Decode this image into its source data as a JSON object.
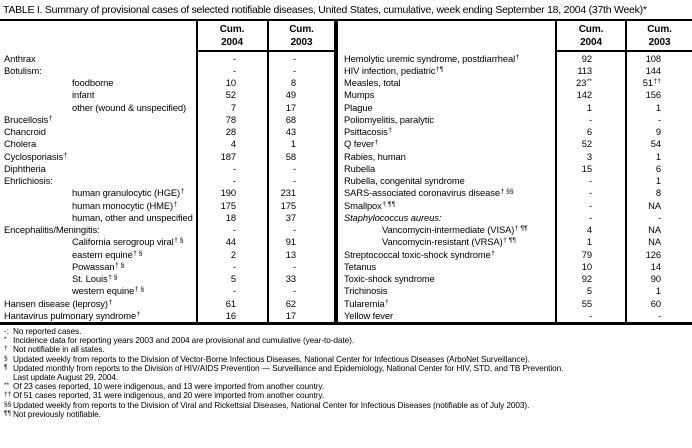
{
  "title": "TABLE I. Summary of provisional cases of selected notifiable diseases, United States, cumulative, week ending September 18, 2004 (37th Week)*",
  "table": {
    "header": {
      "cum": "Cum.",
      "y2004": "2004",
      "y2003": "2003"
    },
    "left_rows": [
      {
        "label": "Anthrax",
        "v1": "-",
        "v2": "-"
      },
      {
        "label": "Botulism:",
        "v1": "-",
        "v2": "-"
      },
      {
        "label": "foodborne",
        "indent": true,
        "v1": "10",
        "v2": "8"
      },
      {
        "label": "infant",
        "indent": true,
        "v1": "52",
        "v2": "49"
      },
      {
        "label": "other (wound & unspecified)",
        "indent": true,
        "v1": "7",
        "v2": "17"
      },
      {
        "label": "Brucellosis",
        "sup": "†",
        "v1": "78",
        "v2": "68"
      },
      {
        "label": "Chancroid",
        "v1": "28",
        "v2": "43"
      },
      {
        "label": "Cholera",
        "v1": "4",
        "v2": "1"
      },
      {
        "label": "Cyclosporiasis",
        "sup": "†",
        "v1": "187",
        "v2": "58"
      },
      {
        "label": "Diphtheria",
        "v1": "-",
        "v2": "-"
      },
      {
        "label": "Ehrlichiosis:",
        "v1": "-",
        "v2": "-"
      },
      {
        "label": "human granulocytic (HGE)",
        "sup": "†",
        "indent": true,
        "v1": "190",
        "v2": "231"
      },
      {
        "label": "human monocytic (HME)",
        "sup": "†",
        "indent": true,
        "v1": "175",
        "v2": "175"
      },
      {
        "label": "human, other and unspecified",
        "indent": true,
        "v1": "18",
        "v2": "37"
      },
      {
        "label": "Encephalitis/Meningitis:",
        "v1": "-",
        "v2": "-"
      },
      {
        "label": "California serogroup viral",
        "sup": "† §",
        "indent": true,
        "v1": "44",
        "v2": "91"
      },
      {
        "label": "eastern equine",
        "sup": "† §",
        "indent": true,
        "v1": "2",
        "v2": "13"
      },
      {
        "label": "Powassan",
        "sup": "† §",
        "indent": true,
        "v1": "-",
        "v2": "-"
      },
      {
        "label": "St. Louis",
        "sup": "† §",
        "indent": true,
        "v1": "5",
        "v2": "33"
      },
      {
        "label": "western equine",
        "sup": "† §",
        "indent": true,
        "v1": "-",
        "v2": "-"
      },
      {
        "label": "Hansen disease (leprosy)",
        "sup": "†",
        "v1": "61",
        "v2": "62"
      },
      {
        "label": "Hantavirus pulmonary syndrome",
        "sup": "†",
        "v1": "16",
        "v2": "17"
      }
    ],
    "right_rows": [
      {
        "label": "Hemolytic uremic syndrome, postdiarrheal",
        "sup": "†",
        "v1": "92",
        "v2": "108"
      },
      {
        "label": "HIV infection, pediatric",
        "sup": "†¶",
        "v1": "113",
        "v2": "144"
      },
      {
        "label": "Measles, total",
        "v1": "23",
        "s1": "**",
        "v2": "51",
        "s2": "††"
      },
      {
        "label": "Mumps",
        "v1": "142",
        "v2": "156"
      },
      {
        "label": "Plague",
        "v1": "1",
        "v2": "1"
      },
      {
        "label": "Poliomyelitis, paralytic",
        "v1": "-",
        "v2": "-"
      },
      {
        "label": "Psittacosis",
        "sup": "†",
        "v1": "6",
        "v2": "9"
      },
      {
        "label": "Q fever",
        "sup": "†",
        "v1": "52",
        "v2": "54"
      },
      {
        "label": "Rabies, human",
        "v1": "3",
        "v2": "1"
      },
      {
        "label": "Rubella",
        "v1": "15",
        "v2": "6"
      },
      {
        "label": "Rubella, congenital syndrome",
        "v1": "-",
        "v2": "1"
      },
      {
        "label": "SARS-associated coronavirus disease",
        "sup": "† §§",
        "v1": "-",
        "v2": "8"
      },
      {
        "label": "Smallpox",
        "sup": "† ¶¶",
        "v1": "-",
        "v2": "NA"
      },
      {
        "label": "Staphylococcus aureus:",
        "italic": true,
        "v1": "-",
        "v2": "-"
      },
      {
        "label": "Vancomycin-intermediate (VISA)",
        "sup": "† ¶¶",
        "indent": true,
        "v1": "4",
        "v2": "NA"
      },
      {
        "label": "Vancomycin-resistant (VRSA)",
        "sup": "† ¶¶",
        "indent": true,
        "v1": "1",
        "v2": "NA"
      },
      {
        "label": "Streptococcal toxic-shock syndrome",
        "sup": "†",
        "v1": "79",
        "v2": "126"
      },
      {
        "label": "Tetanus",
        "v1": "10",
        "v2": "14"
      },
      {
        "label": "Toxic-shock syndrome",
        "v1": "92",
        "v2": "90"
      },
      {
        "label": "Trichinosis",
        "v1": "5",
        "v2": "1"
      },
      {
        "label": "Tularemia",
        "sup": "†",
        "v1": "55",
        "v2": "60"
      },
      {
        "label": "Yellow fever",
        "v1": "-",
        "v2": "-"
      }
    ]
  },
  "footnotes": [
    {
      "mark": "-:",
      "sup": false,
      "lines": [
        "No reported cases."
      ]
    },
    {
      "mark": "*",
      "sup": true,
      "lines": [
        "Incidence data for reporting years 2003 and 2004 are provisional and cumulative (year-to-date)."
      ]
    },
    {
      "mark": "†",
      "sup": true,
      "lines": [
        "Not notifiable in all states."
      ]
    },
    {
      "mark": "§",
      "sup": true,
      "lines": [
        "Updated weekly from reports to the Division of Vector-Borne Infectious Diseases, National Center for Infectious Diseases (ArboNet Surveillance)."
      ]
    },
    {
      "mark": "¶",
      "sup": true,
      "lines": [
        "Updated monthly from reports to the Division of HIV/AIDS Prevention — Surveillance and Epidemiology, National Center for HIV, STD, and TB Prevention.",
        "Last update August 29, 2004."
      ]
    },
    {
      "mark": "**",
      "sup": true,
      "lines": [
        "Of 23 cases reported, 10 were indigenous, and 13 were imported from another country."
      ]
    },
    {
      "mark": "††",
      "sup": true,
      "lines": [
        "Of 51 cases reported, 31 were indigenous, and 20 were imported from another country."
      ]
    },
    {
      "mark": "§§",
      "sup": true,
      "lines": [
        "Updated weekly from reports to the Division of Viral and Rickettsial Diseases, National Center for Infectious Diseases (notifiable as of July 2003)."
      ]
    },
    {
      "mark": "¶¶",
      "sup": true,
      "lines": [
        "Not previously notifiable."
      ]
    }
  ],
  "colors": {
    "text": "#000000",
    "background": "#ffffff",
    "rule": "#000000"
  }
}
